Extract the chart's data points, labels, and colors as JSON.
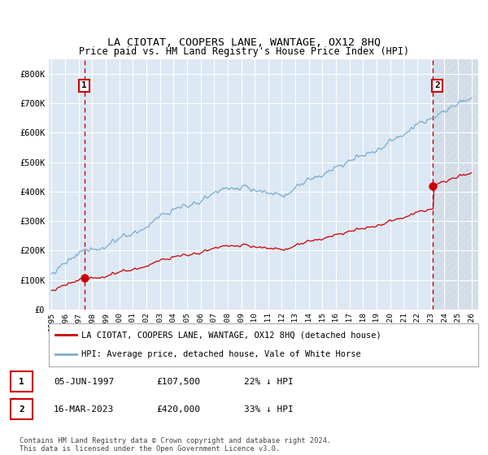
{
  "title": "LA CIOTAT, COOPERS LANE, WANTAGE, OX12 8HQ",
  "subtitle": "Price paid vs. HM Land Registry's House Price Index (HPI)",
  "ylim": [
    0,
    850000
  ],
  "yticks": [
    0,
    100000,
    200000,
    300000,
    400000,
    500000,
    600000,
    700000,
    800000
  ],
  "ytick_labels": [
    "£0",
    "£100K",
    "£200K",
    "£300K",
    "£400K",
    "£500K",
    "£600K",
    "£700K",
    "£800K"
  ],
  "hpi_color": "#7aabcf",
  "price_color": "#cc0000",
  "bg_color": "#dce8f3",
  "grid_color": "#ffffff",
  "hatch_color": "#c0c8d0",
  "transaction1_date": "05-JUN-1997",
  "transaction1_price": 107500,
  "transaction1_label": "1",
  "transaction1_hpi_pct": "22% ↓ HPI",
  "transaction2_date": "16-MAR-2023",
  "transaction2_price": 420000,
  "transaction2_label": "2",
  "transaction2_hpi_pct": "33% ↓ HPI",
  "legend_property": "LA CIOTAT, COOPERS LANE, WANTAGE, OX12 8HQ (detached house)",
  "legend_hpi": "HPI: Average price, detached house, Vale of White Horse",
  "footnote": "Contains HM Land Registry data © Crown copyright and database right 2024.\nThis data is licensed under the Open Government Licence v3.0.",
  "t1_year": 1997.417,
  "t2_year": 2023.167,
  "xlim_start": 1994.8,
  "xlim_end": 2026.5,
  "hatch_start": 2023.2
}
